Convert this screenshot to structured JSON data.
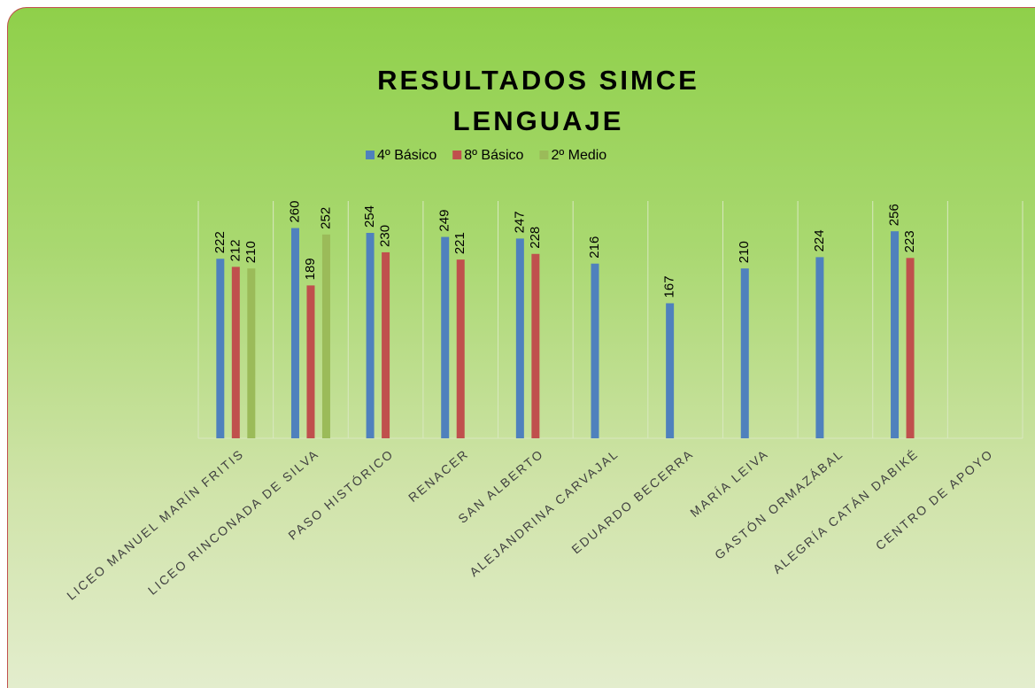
{
  "chart_data": {
    "type": "bar",
    "title": "RESULTADOS SIMCE LENGUAJE",
    "categories": [
      "LICEO MANUEL MARÍN FRITIS",
      "LICEO RINCONADA DE SILVA",
      "PASO HISTÓRICO",
      "RENACER",
      "SAN ALBERTO",
      "ALEJANDRINA CARVAJAL",
      "EDUARDO BECERRA",
      "MARÍA LEIVA",
      "GASTÓN ORMAZÁBAL",
      "ALEGRÍA CATÁN DABIKÉ",
      "CENTRO DE APOYO"
    ],
    "series": [
      {
        "name": "4º Básico",
        "color": "#4f81bd",
        "values": [
          222,
          260,
          254,
          249,
          247,
          216,
          167,
          210,
          224,
          256,
          null
        ]
      },
      {
        "name": "8º Básico",
        "color": "#c0504d",
        "values": [
          212,
          189,
          230,
          221,
          228,
          null,
          null,
          null,
          null,
          223,
          null
        ]
      },
      {
        "name": "2º Medio",
        "color": "#9bbb59",
        "values": [
          210,
          252,
          null,
          null,
          null,
          null,
          null,
          null,
          null,
          null,
          null
        ]
      }
    ],
    "ylim": [
      0,
      300
    ],
    "legend": "top"
  }
}
